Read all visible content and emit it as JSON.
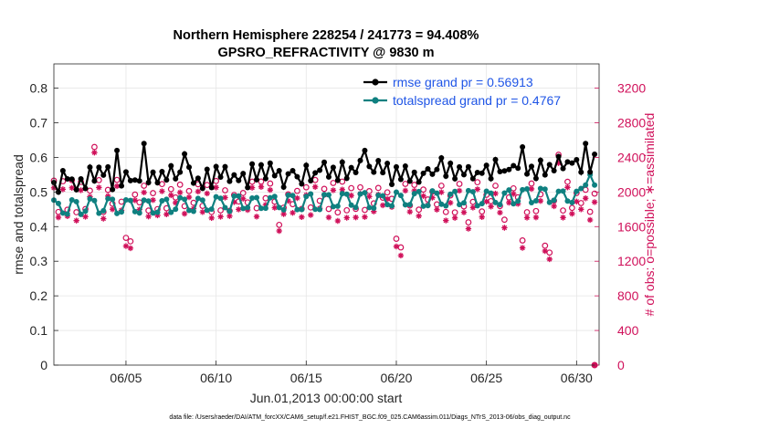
{
  "chart_data": {
    "type": "line",
    "title_line1": "Northern Hemisphere 228254 / 241773 = 94.408%",
    "title_line2": "GPSRO_REFRACTIVITY @ 9830 m",
    "xlabel": "Jun.01,2013 00:00:00 start",
    "ylabel_left": "rmse and totalspread",
    "ylabel_right": "# of obs: o=possible; ∗=assimilated",
    "footer": "data file: /Users/raeder/DAI/ATM_forcXX/CAM6_setup/f.e21.FHIST_BGC.f09_025.CAM6assim.011/Diags_NTrS_2013-06/obs_diag_output.nc",
    "xlim": [
      1.0,
      31.25
    ],
    "ylim_left": [
      0,
      0.87
    ],
    "ylim_right": [
      0,
      3480
    ],
    "x_ticks": [
      {
        "value": 5,
        "label": "06/05"
      },
      {
        "value": 10,
        "label": "06/10"
      },
      {
        "value": 15,
        "label": "06/15"
      },
      {
        "value": 20,
        "label": "06/20"
      },
      {
        "value": 25,
        "label": "06/25"
      },
      {
        "value": 30,
        "label": "06/30"
      }
    ],
    "y_ticks_left": [
      "0",
      "0.1",
      "0.2",
      "0.3",
      "0.4",
      "0.5",
      "0.6",
      "0.7",
      "0.8"
    ],
    "y_ticks_right": [
      "0",
      "400",
      "800",
      "1200",
      "1600",
      "2000",
      "2400",
      "2800",
      "3200"
    ],
    "legend": [
      {
        "name": "rmse grand pr = 0.56913",
        "color": "#000000",
        "marker": "circle"
      },
      {
        "name": "totalspread grand pr = 0.4767",
        "color": "#0f8080",
        "marker": "circle"
      }
    ],
    "colors": {
      "rmse": "#000000",
      "spread": "#0f8080",
      "obs": "#d0105a",
      "legend_text": "#1f55e6",
      "grid": "#e6e6e6"
    },
    "series_generation": {
      "samples_per_day": 4,
      "start_day": 1.0,
      "count": 121,
      "rmse": {
        "base": 0.535,
        "trend": 0.0013,
        "alt": 0.025,
        "noise": 0.025,
        "spikes": [
          [
            14,
            0.62
          ],
          [
            20,
            0.64
          ],
          [
            29,
            0.61
          ],
          [
            69,
            0.62
          ],
          [
            104,
            0.63
          ],
          [
            118,
            0.64
          ]
        ]
      },
      "spread": {
        "base": 0.455,
        "trend": 0.0012,
        "alt": 0.035,
        "noise": 0.006,
        "final": [
          0.51,
          0.52,
          0.55,
          0.52
        ]
      },
      "possible": {
        "base": 1950,
        "alt": 100,
        "noise": 90,
        "dips": [
          [
            16,
            1470
          ],
          [
            17,
            1430
          ],
          [
            50,
            1620
          ],
          [
            76,
            1460
          ],
          [
            77,
            1360
          ],
          [
            92,
            1650
          ],
          [
            100,
            1680
          ],
          [
            104,
            1440
          ],
          [
            109,
            1380
          ],
          [
            110,
            1300
          ],
          [
            9,
            2520
          ],
          [
            112,
            2430
          ]
        ]
      },
      "assimilated_offset": 60
    }
  }
}
